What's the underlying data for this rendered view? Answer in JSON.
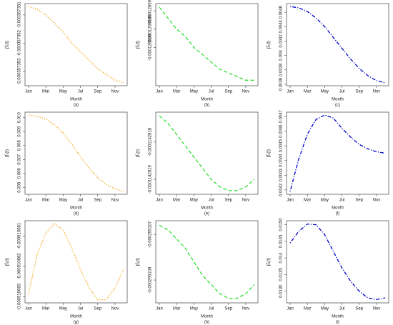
{
  "chart_data": [
    {
      "type": "line",
      "caption": "(a)",
      "x_label": "Month",
      "y_label": "β̂₁(t)",
      "color": "#f0a000",
      "line_style": "dotted",
      "categories": [
        "Jan",
        null,
        "Mar",
        null,
        "May",
        null,
        "Jul",
        null,
        "Sep",
        null,
        "Nov",
        null
      ],
      "values": [
        -0.0003573507,
        -0.0003573508,
        -0.000357351,
        -0.0003573513,
        -0.0003573516,
        -0.000357352,
        -0.0003573523,
        -0.0003573526,
        -0.0003573529,
        -0.0003573531,
        -0.0003573533,
        -0.0003573534
      ],
      "ylim": [
        -0.0003573535,
        -0.0003573506
      ],
      "yticks": [
        -0.000357353,
        -0.000357352,
        -0.000357351
      ]
    },
    {
      "type": "line",
      "caption": "(b)",
      "x_label": "Month",
      "y_label": "β̂₁(t)",
      "color": "#33dd33",
      "line_style": "dashed",
      "categories": [
        "Jan",
        null,
        "Mar",
        null,
        "May",
        null,
        "Jul",
        null,
        "Sep",
        null,
        "Nov",
        null
      ],
      "values": [
        -0.0001265979,
        -0.0001265982,
        -0.0001265985,
        -0.0001265987,
        -0.000126599,
        -0.0001265992,
        -0.0001265994,
        -0.0001265996,
        -0.0001265997,
        -0.0001265998,
        -0.0001265999,
        -0.0001265999
      ],
      "ylim": [
        -0.00012660005,
        -0.0001265978
      ],
      "yticks": [
        -0.000126599,
        -0.0001265985,
        -0.000126598
      ]
    },
    {
      "type": "line",
      "caption": "(c)",
      "x_label": "Month",
      "y_label": "β̂₁(t)",
      "color": "#0000cc",
      "line_style": "dotdash",
      "categories": [
        "Jan",
        null,
        "Mar",
        null,
        "May",
        null,
        "Jul",
        null,
        "Sep",
        null,
        "Nov",
        null
      ],
      "values": [
        0.00468,
        0.00466,
        0.00461,
        0.00452,
        0.0044,
        0.00425,
        0.0041,
        0.00395,
        0.00382,
        0.00372,
        0.00365,
        0.00362
      ],
      "ylim": [
        0.00358,
        0.00472
      ],
      "yticks": [
        0.0036,
        0.0038,
        0.004,
        0.0042,
        0.0044,
        0.0046
      ]
    },
    {
      "type": "line",
      "caption": "(d)",
      "x_label": "Month",
      "y_label": "β̂₁(t)",
      "color": "#f0a000",
      "line_style": "dotted",
      "categories": [
        "Jan",
        null,
        "Mar",
        null,
        "May",
        null,
        "Jul",
        null,
        "Sep",
        null,
        "Nov",
        null
      ],
      "values": [
        0.0102,
        0.0101,
        0.0099,
        0.0095,
        0.0089,
        0.0081,
        0.0072,
        0.0064,
        0.0057,
        0.0052,
        0.0049,
        0.0047
      ],
      "ylim": [
        0.0045,
        0.0104
      ],
      "yticks": [
        0.005,
        0.006,
        0.007,
        0.008,
        0.009,
        {
          "value": 0.01,
          "label": "0.010"
        }
      ]
    },
    {
      "type": "line",
      "caption": "(e)",
      "x_label": "Month",
      "y_label": "β̂₁(t)",
      "color": "#33dd33",
      "line_style": "dashed",
      "categories": [
        "Jan",
        null,
        "Mar",
        null,
        "May",
        null,
        "Jul",
        null,
        "Sep",
        null,
        "Nov",
        null
      ],
      "values": [
        -0.00011428173,
        -0.00011428175,
        -0.00011428178,
        -0.00011428181,
        -0.00011428184,
        -0.00011428187,
        -0.0001142819,
        -0.00011428192,
        -0.00011428193,
        -0.00011428193,
        -0.00011428192,
        -0.0001142819
      ],
      "ylim": [
        -0.00011428194,
        -0.00011428172
      ],
      "yticks": [
        -0.0001142819,
        -0.0001142818
      ]
    },
    {
      "type": "line",
      "caption": "(f)",
      "x_label": "Month",
      "y_label": "β̂₁(t)",
      "color": "#0000cc",
      "line_style": "dotdash",
      "categories": [
        "Jan",
        null,
        "Mar",
        null,
        "May",
        null,
        "Jul",
        null,
        "Sep",
        null,
        "Nov",
        null
      ],
      "values": [
        0.00419,
        0.00441,
        0.00458,
        0.00468,
        0.00471,
        0.00469,
        0.00462,
        0.00456,
        0.00451,
        0.00448,
        0.00446,
        0.00445
      ],
      "ylim": [
        0.00417,
        0.00473
      ],
      "yticks": [
        0.0042,
        0.0043,
        0.0044,
        0.0045,
        0.0046,
        0.0047
      ]
    },
    {
      "type": "line",
      "caption": "(g)",
      "x_label": "Month",
      "y_label": "β̂₁(t)",
      "color": "#f0a000",
      "line_style": "dotted",
      "categories": [
        "Jan",
        null,
        "Mar",
        null,
        "May",
        null,
        "Jul",
        null,
        "Sep",
        null,
        "Nov",
        null
      ],
      "values": [
        -0.0009106829,
        -0.0009106816,
        -0.0009106809,
        -0.0009106806,
        -0.0009106808,
        -0.0009106814,
        -0.0009106821,
        -0.0009106827,
        -0.0009106831,
        -0.0009106831,
        -0.0009106827,
        -0.0009106821
      ],
      "ylim": [
        -0.0009106832,
        -0.0009106805
      ],
      "yticks": [
        -0.000910683,
        -0.000910682,
        -0.000910681
      ]
    },
    {
      "type": "line",
      "caption": "(h)",
      "x_label": "Month",
      "y_label": "β̂₁(t)",
      "color": "#33dd33",
      "line_style": "dashed",
      "categories": [
        "Jan",
        null,
        "Mar",
        null,
        "May",
        null,
        "Jul",
        null,
        "Sep",
        null,
        "Nov",
        null
      ],
      "values": [
        -0.0002951068,
        -0.0002951069,
        -0.0002951071,
        -0.0002951073,
        -0.0002951076,
        -0.0002951079,
        -0.0002951081,
        -0.0002951083,
        -0.0002951084,
        -0.0002951084,
        -0.0002951083,
        -0.0002951081
      ],
      "ylim": [
        -0.0002951085,
        -0.0002951067
      ],
      "yticks": [
        -0.000295108,
        -0.000295107
      ]
    },
    {
      "type": "line",
      "caption": "(i)",
      "x_label": "Month",
      "y_label": "β̂₁(t)",
      "color": "#0000cc",
      "line_style": "dotdash",
      "categories": [
        "Jan",
        null,
        "Mar",
        null,
        "May",
        null,
        "Jul",
        null,
        "Sep",
        null,
        "Nov",
        null
      ],
      "values": [
        0.01445,
        0.0148,
        0.01502,
        0.015,
        0.0147,
        0.0142,
        0.0137,
        0.0133,
        0.013,
        0.0128,
        0.01275,
        0.0128
      ],
      "ylim": [
        0.01265,
        0.01512
      ],
      "yticks": [
        {
          "value": 0.013,
          "label": "0.0130"
        },
        0.0135,
        0.014,
        0.0145,
        {
          "value": 0.015,
          "label": "0.0150"
        }
      ]
    }
  ]
}
